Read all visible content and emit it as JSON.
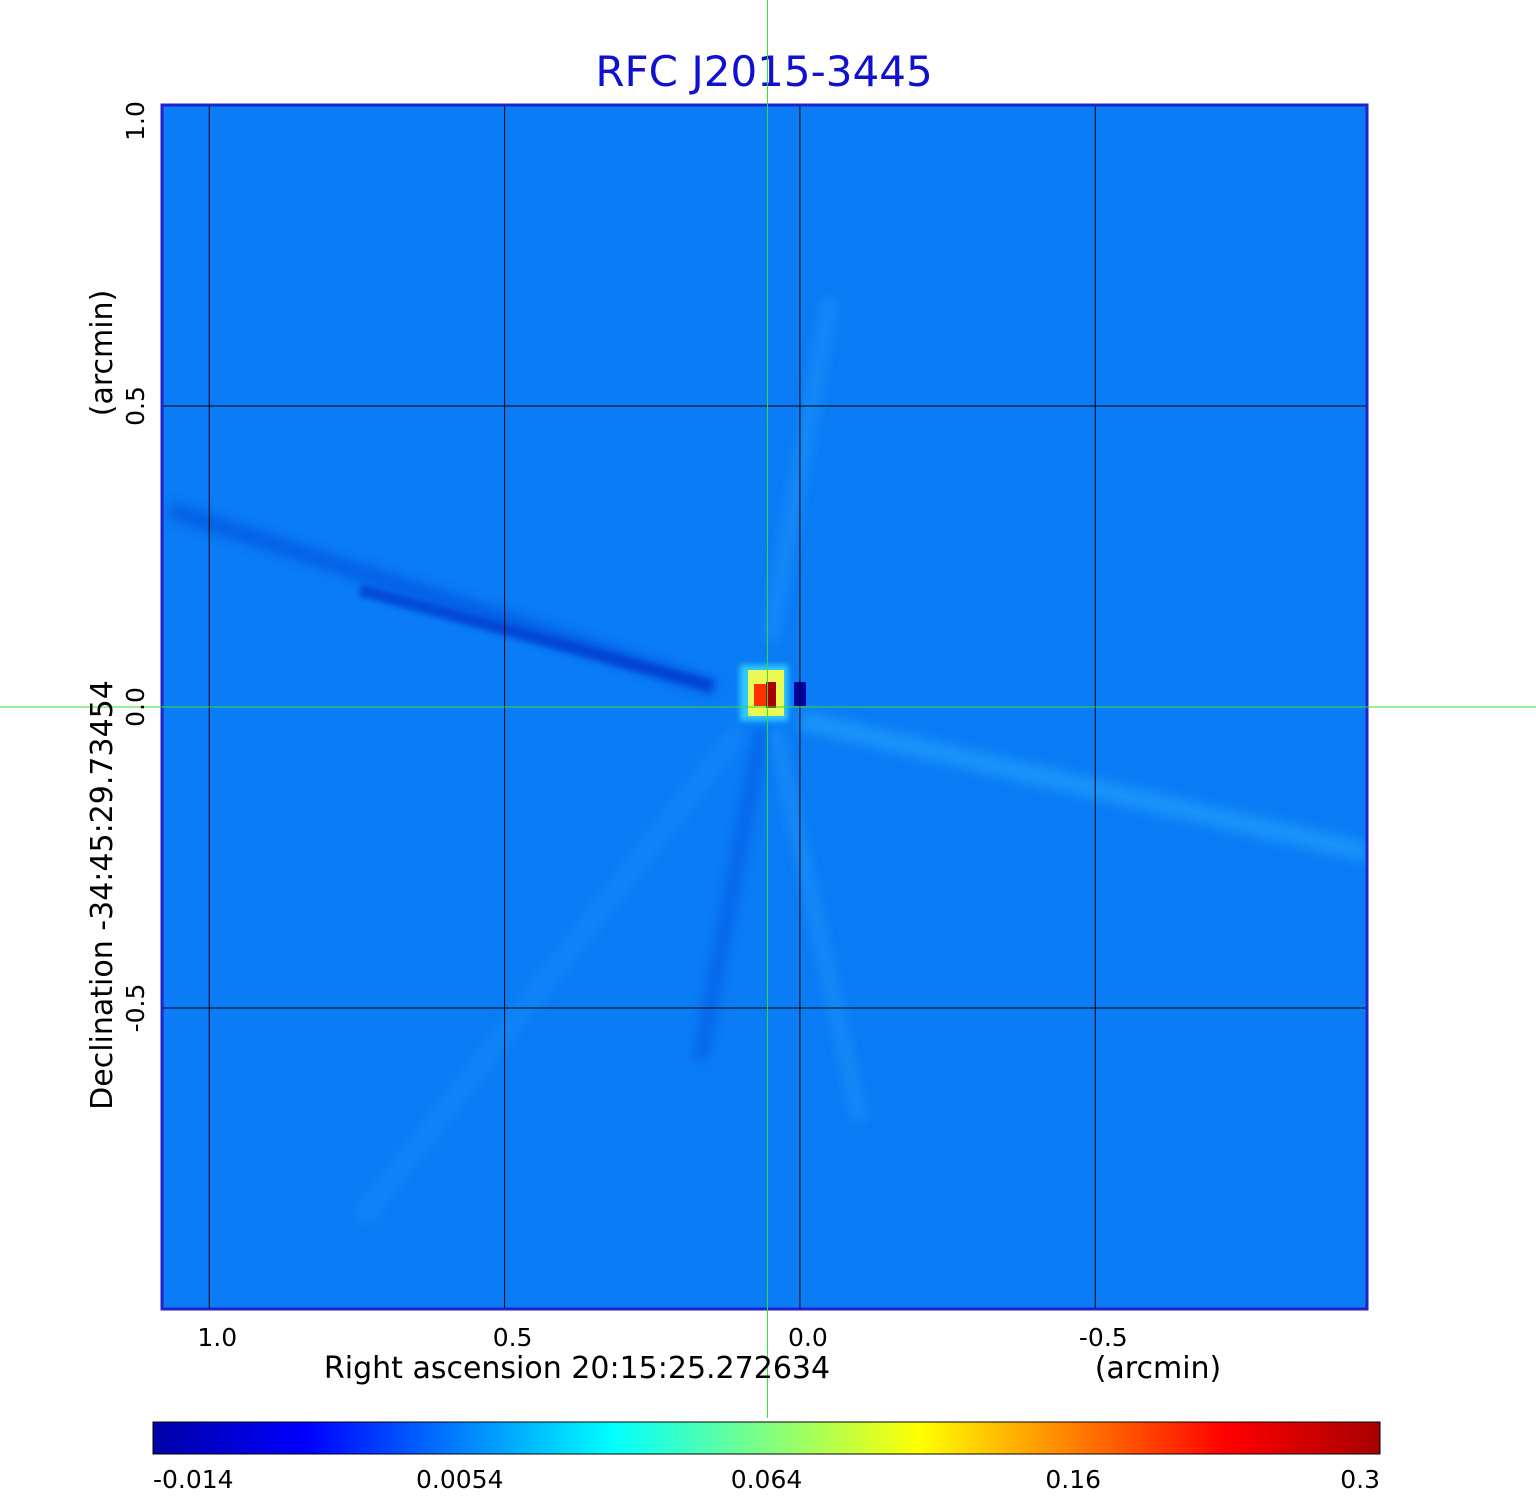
{
  "chart_data": {
    "type": "heatmap",
    "title": "RFC J2015-3445",
    "xlabel": "Right ascension  20:15:25.272634",
    "xunit": "(arcmin)",
    "ylabel": "Declination  -34:45:29.73454",
    "yunit": "(arcmin)",
    "xlim": [
      1.08,
      -0.96
    ],
    "ylim": [
      -1.0,
      1.0
    ],
    "x_ticks": [
      {
        "value": 1.0,
        "label": "1.0"
      },
      {
        "value": 0.5,
        "label": "0.5"
      },
      {
        "value": 0.0,
        "label": "0.0"
      },
      {
        "value": -0.5,
        "label": "-0.5"
      }
    ],
    "y_ticks": [
      {
        "value": 1.0,
        "label": "1.0"
      },
      {
        "value": 0.5,
        "label": "0.5"
      },
      {
        "value": 0.0,
        "label": "0.0"
      },
      {
        "value": -0.5,
        "label": "-0.5"
      }
    ],
    "grid": true,
    "crosshair": {
      "x": 0.055,
      "y": 0.0,
      "color": "#33dd33"
    },
    "peak": {
      "x": 0.055,
      "y": 0.03,
      "value": 0.3
    },
    "colorbar": {
      "ticks": [
        {
          "value": -0.014,
          "label": "-0.014"
        },
        {
          "value": 0.0054,
          "label": "0.0054"
        },
        {
          "value": 0.064,
          "label": "0.064"
        },
        {
          "value": 0.16,
          "label": "0.16"
        },
        {
          "value": 0.3,
          "label": "0.3"
        }
      ],
      "colors": [
        "#0000a8",
        "#0000ff",
        "#0080ff",
        "#00ffff",
        "#80ff80",
        "#ffff00",
        "#ff8000",
        "#ff0000",
        "#a80000"
      ]
    },
    "background_color": "#0a7cf5",
    "frame_color": "#2222cc",
    "title_color": "#1010d0"
  }
}
